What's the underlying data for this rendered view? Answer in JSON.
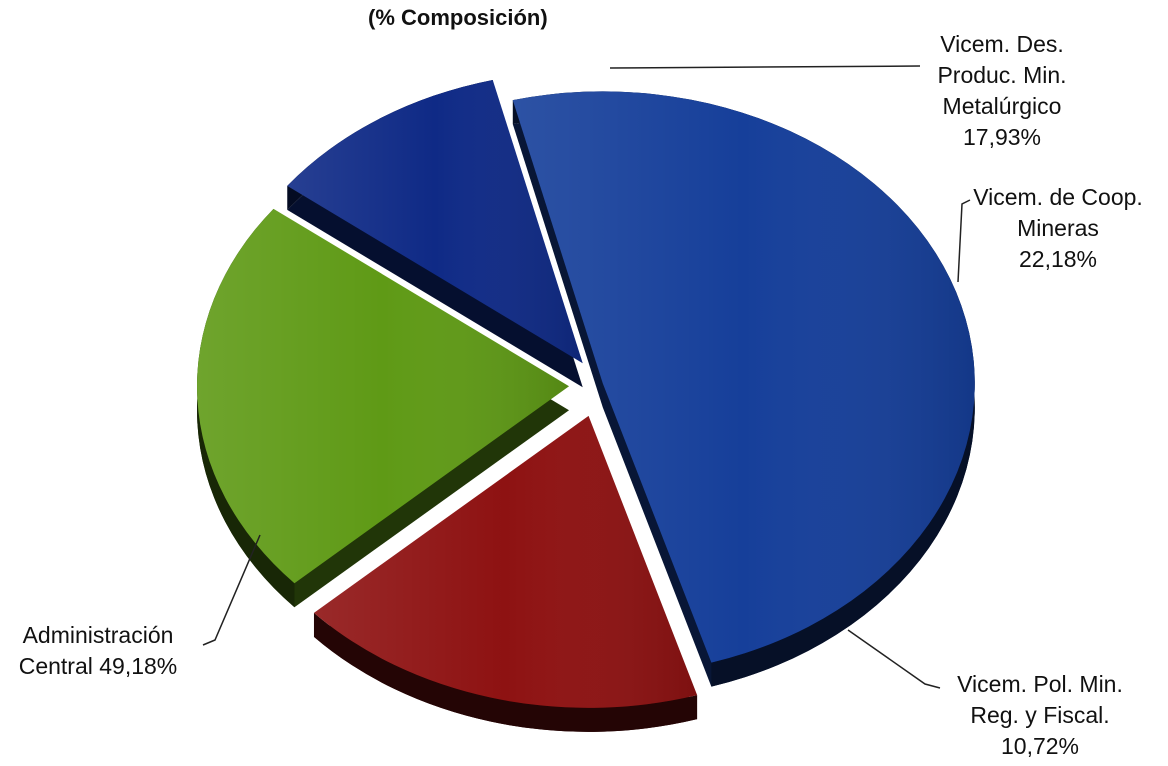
{
  "chart_data": {
    "type": "pie",
    "title": "(% Composición)",
    "slices": [
      {
        "name": "Administración Central",
        "value": 49.18,
        "label_lines": [
          "Administración",
          "Central 49,18%"
        ],
        "color": "#163f9a"
      },
      {
        "name": "Vicem. Des. Produc. Min. Metalúrgico",
        "value": 17.93,
        "label_lines": [
          "Vicem. Des.",
          "Produc. Min.",
          "Metalúrgico",
          "17,93%"
        ],
        "color": "#8e1212"
      },
      {
        "name": "Vicem. de Coop. Mineras",
        "value": 22.18,
        "label_lines": [
          "Vicem.  de Coop.",
          "Mineras",
          "22,18%"
        ],
        "color": "#5f9a16"
      },
      {
        "name": "Vicem. Pol. Min. Reg. y Fiscal.",
        "value": 10.72,
        "label_lines": [
          "Vicem. Pol. Min.",
          "Reg. y Fiscal.",
          "10,72%"
        ],
        "color": "#0f2a86"
      }
    ],
    "legend": "none",
    "style": "3d-exploded"
  }
}
